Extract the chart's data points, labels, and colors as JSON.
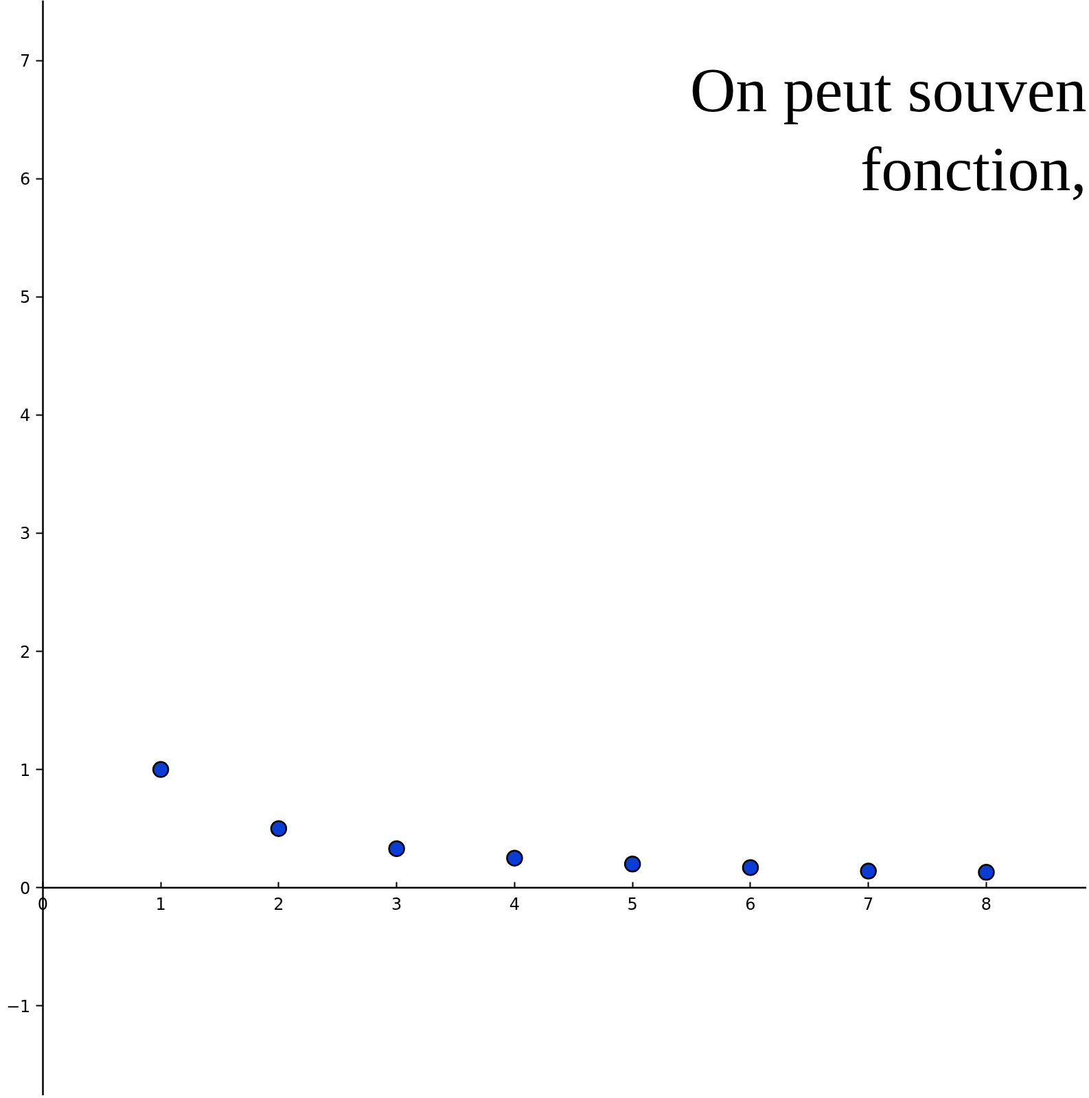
{
  "chart_data": {
    "type": "scatter",
    "annotations": [
      "On peut souven",
      "fonction,"
    ],
    "x": [
      1,
      2,
      3,
      4,
      5,
      6,
      7,
      8
    ],
    "values": [
      1,
      0.5,
      0.33,
      0.25,
      0.2,
      0.17,
      0.14,
      0.13
    ],
    "color": "#0a3cd6",
    "marker": "circle",
    "xlim": [
      -0.36,
      8.85
    ],
    "ylim": [
      -1.76,
      7.51
    ],
    "xticks": [
      0,
      1,
      2,
      3,
      4,
      5,
      6,
      7,
      8
    ],
    "yticks": [
      -1,
      0,
      1,
      2,
      3,
      4,
      5,
      6,
      7
    ]
  }
}
